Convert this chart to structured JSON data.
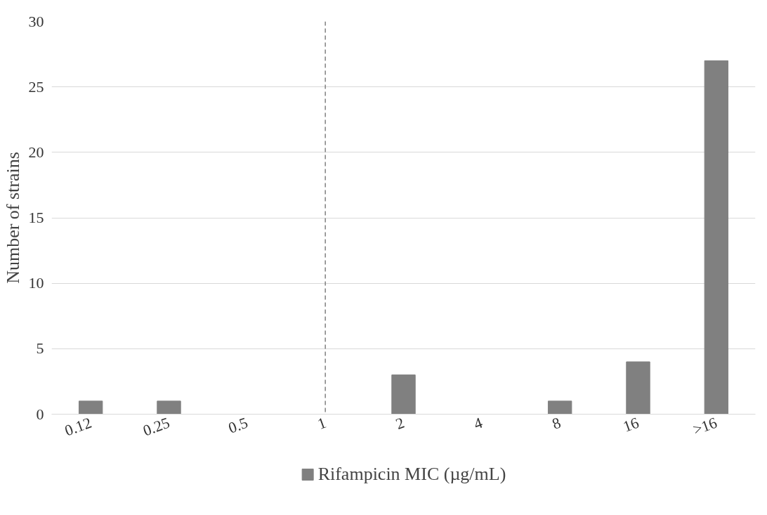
{
  "chart_data": {
    "type": "bar",
    "ylabel": "Number of strains",
    "categories": [
      "0.12",
      "0.25",
      "0.5",
      "1",
      "2",
      "4",
      "8",
      "16",
      ">16"
    ],
    "series": [
      {
        "name": "Rifampicin MIC (µg/mL)",
        "color": "#808080",
        "values": [
          1,
          1,
          0,
          0,
          3,
          0,
          1,
          4,
          27
        ]
      }
    ],
    "ylim": [
      0,
      30
    ],
    "yticks": [
      0,
      5,
      10,
      15,
      20,
      25,
      30
    ],
    "grid": "y",
    "legend": "bottom",
    "ref_lines": [
      {
        "axis": "x",
        "value": "1",
        "color": "#808080",
        "line_style": "dashed"
      }
    ]
  }
}
